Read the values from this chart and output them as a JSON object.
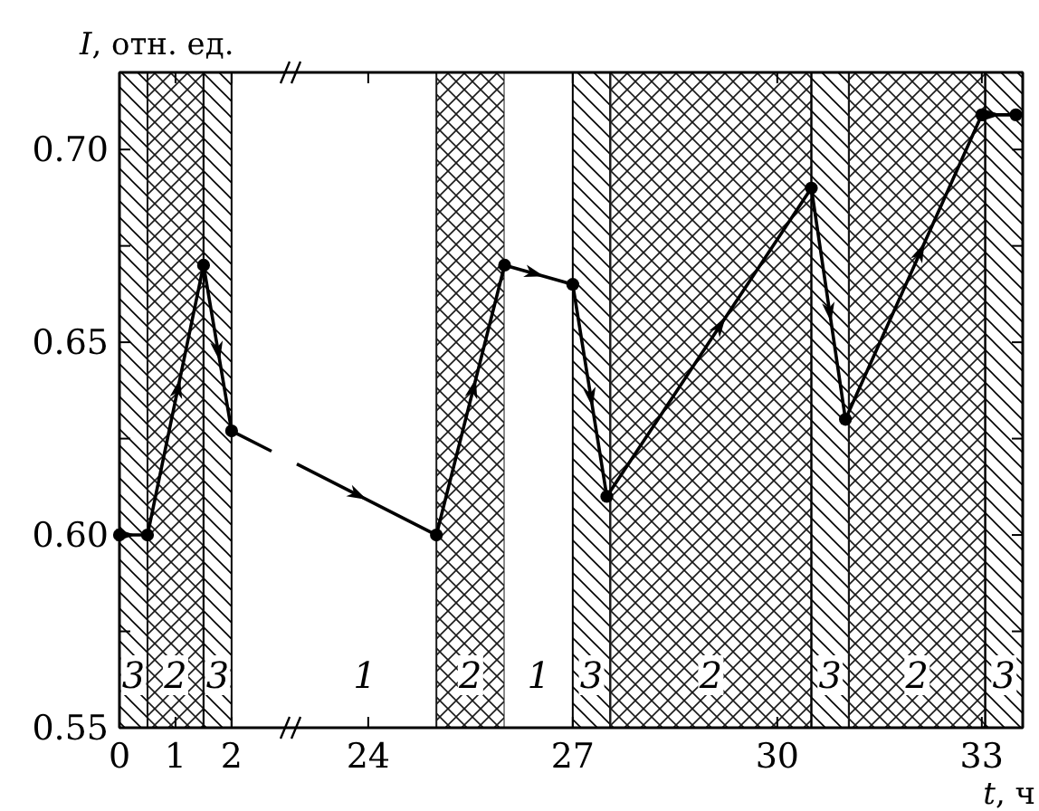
{
  "chart_data": [
    {
      "type": "line",
      "ylabel": "I, отн. ед.",
      "x": [
        0,
        0.5,
        1.5,
        2
      ],
      "series": [
        {
          "color": "#000000",
          "values": [
            0.6,
            0.6,
            0.67,
            0.627
          ]
        }
      ],
      "xlim": [
        0,
        3.1
      ],
      "xticks": [
        0,
        1,
        2
      ],
      "ylim": [
        0.55,
        0.72
      ],
      "yticks": [
        {
          "value": 0.55,
          "label": "0.55"
        },
        {
          "value": 0.575,
          "label": null
        },
        {
          "value": 0.6,
          "label": "0.60"
        },
        {
          "value": 0.625,
          "label": null
        },
        {
          "value": 0.65,
          "label": "0.65"
        },
        {
          "value": 0.675,
          "label": null
        },
        {
          "value": 0.7,
          "label": "0.70"
        }
      ],
      "marker": "circle",
      "line_style": "solid",
      "bands": [
        {
          "axis": "x",
          "from": 0,
          "to": 0.5,
          "label": "3",
          "color": "#000000"
        },
        {
          "axis": "x",
          "from": 0.5,
          "to": 1.5,
          "label": "2",
          "color": "#1a1a1a"
        },
        {
          "axis": "x",
          "from": 1.5,
          "to": 2,
          "label": "3",
          "color": "#000000"
        }
      ]
    },
    {
      "type": "line",
      "xlabel": "t, ч",
      "tick_labels": "x",
      "annotations": [
        "1"
      ],
      "x": [
        25,
        26,
        27,
        27.5,
        30.5,
        31,
        33,
        33.5
      ],
      "series": [
        {
          "color": "#000000",
          "values": [
            0.6,
            0.67,
            0.665,
            0.61,
            0.69,
            0.63,
            0.709,
            0.709
          ]
        }
      ],
      "xlim": [
        22.9,
        33.6
      ],
      "xticks": [
        24,
        27,
        30,
        33
      ],
      "ylim": [
        0.55,
        0.72
      ],
      "yticks": [
        0.55,
        0.575,
        0.6,
        0.625,
        0.65,
        0.675,
        0.7
      ],
      "marker": "circle",
      "line_style": "solid",
      "bands": [
        {
          "axis": "x",
          "from": 25,
          "to": 26,
          "label": "2",
          "color": "#1a1a1a"
        },
        {
          "axis": "x",
          "from": 26,
          "to": 27,
          "label": "1",
          "color": "#ffffff"
        },
        {
          "axis": "x",
          "from": 27,
          "to": 27.55,
          "label": "3",
          "color": "#000000"
        },
        {
          "axis": "x",
          "from": 27.55,
          "to": 30.5,
          "label": "2",
          "color": "#1a1a1a"
        },
        {
          "axis": "x",
          "from": 30.5,
          "to": 31.05,
          "label": "3",
          "color": "#000000"
        },
        {
          "axis": "x",
          "from": 31.05,
          "to": 33.05,
          "label": "2",
          "color": "#1a1a1a"
        },
        {
          "axis": "x",
          "from": 33.05,
          "to": 33.6,
          "label": "3",
          "color": "#000000"
        }
      ]
    }
  ]
}
